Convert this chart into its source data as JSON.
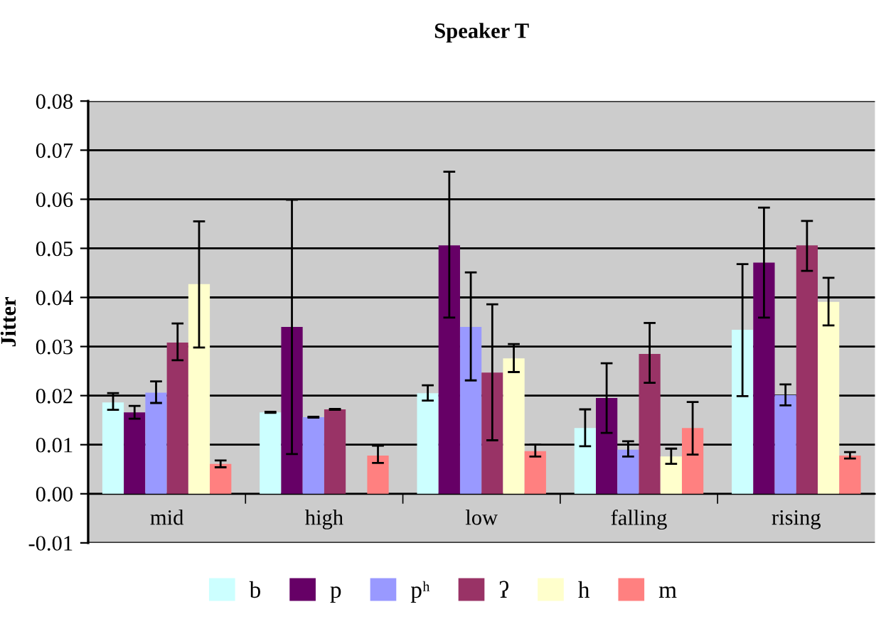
{
  "chart_data": {
    "type": "bar",
    "title": "Speaker T",
    "ylabel": "Jitter",
    "categories": [
      "mid",
      "high",
      "low",
      "falling",
      "rising"
    ],
    "series": [
      {
        "name": "b",
        "color": "#ccffff",
        "values": [
          0.0186,
          0.0166,
          0.0205,
          0.0134,
          0.0334
        ],
        "errors": [
          [
            0.0171,
            0.0205
          ],
          [
            0.0165,
            0.0167
          ],
          [
            0.019,
            0.0221
          ],
          [
            0.0097,
            0.0172
          ],
          [
            0.0199,
            0.0468
          ]
        ]
      },
      {
        "name": "p",
        "color": "#660066",
        "values": [
          0.0166,
          0.034,
          0.0506,
          0.0195,
          0.0471
        ],
        "errors": [
          [
            0.0153,
            0.0179
          ],
          [
            0.0081,
            0.0599
          ],
          [
            0.0359,
            0.0656
          ],
          [
            0.0124,
            0.0266
          ],
          [
            0.0359,
            0.0583
          ]
        ]
      },
      {
        "name": "pʰ",
        "color": "#9999ff",
        "values": [
          0.0206,
          0.0156,
          0.034,
          0.009,
          0.0201
        ],
        "errors": [
          [
            0.0185,
            0.0229
          ],
          [
            0.0155,
            0.0157
          ],
          [
            0.0231,
            0.0451
          ],
          [
            0.0076,
            0.0107
          ],
          [
            0.018,
            0.0223
          ]
        ]
      },
      {
        "name": "ʔ",
        "color": "#993366",
        "values": [
          0.0308,
          0.0172,
          0.0247,
          0.0285,
          0.0506
        ],
        "errors": [
          [
            0.0272,
            0.0347
          ],
          [
            0.0171,
            0.0173
          ],
          [
            0.0109,
            0.0386
          ],
          [
            0.0226,
            0.0348
          ],
          [
            0.0454,
            0.0556
          ]
        ]
      },
      {
        "name": "h",
        "color": "#ffffcc",
        "values": [
          0.0427,
          null,
          0.0276,
          0.0076,
          0.0391
        ],
        "errors": [
          [
            0.0298,
            0.0555
          ],
          null,
          [
            0.0248,
            0.0305
          ],
          [
            0.0061,
            0.0092
          ],
          [
            0.0343,
            0.044
          ]
        ]
      },
      {
        "name": "m",
        "color": "#ff8080",
        "values": [
          0.0061,
          0.0078,
          0.0087,
          0.0134,
          0.0078
        ],
        "errors": [
          [
            0.0054,
            0.0068
          ],
          [
            0.0063,
            0.0098
          ],
          [
            0.0076,
            0.01
          ],
          [
            0.008,
            0.0187
          ],
          [
            0.0072,
            0.0085
          ]
        ]
      }
    ],
    "ylim": [
      -0.01,
      0.08
    ],
    "yticks": [
      -0.01,
      {
        "value": 0,
        "label": "0.00"
      },
      0.01,
      0.02,
      0.03,
      0.04,
      0.05,
      0.06,
      0.07,
      0.08
    ],
    "grid": "y",
    "legend": "bottom"
  }
}
